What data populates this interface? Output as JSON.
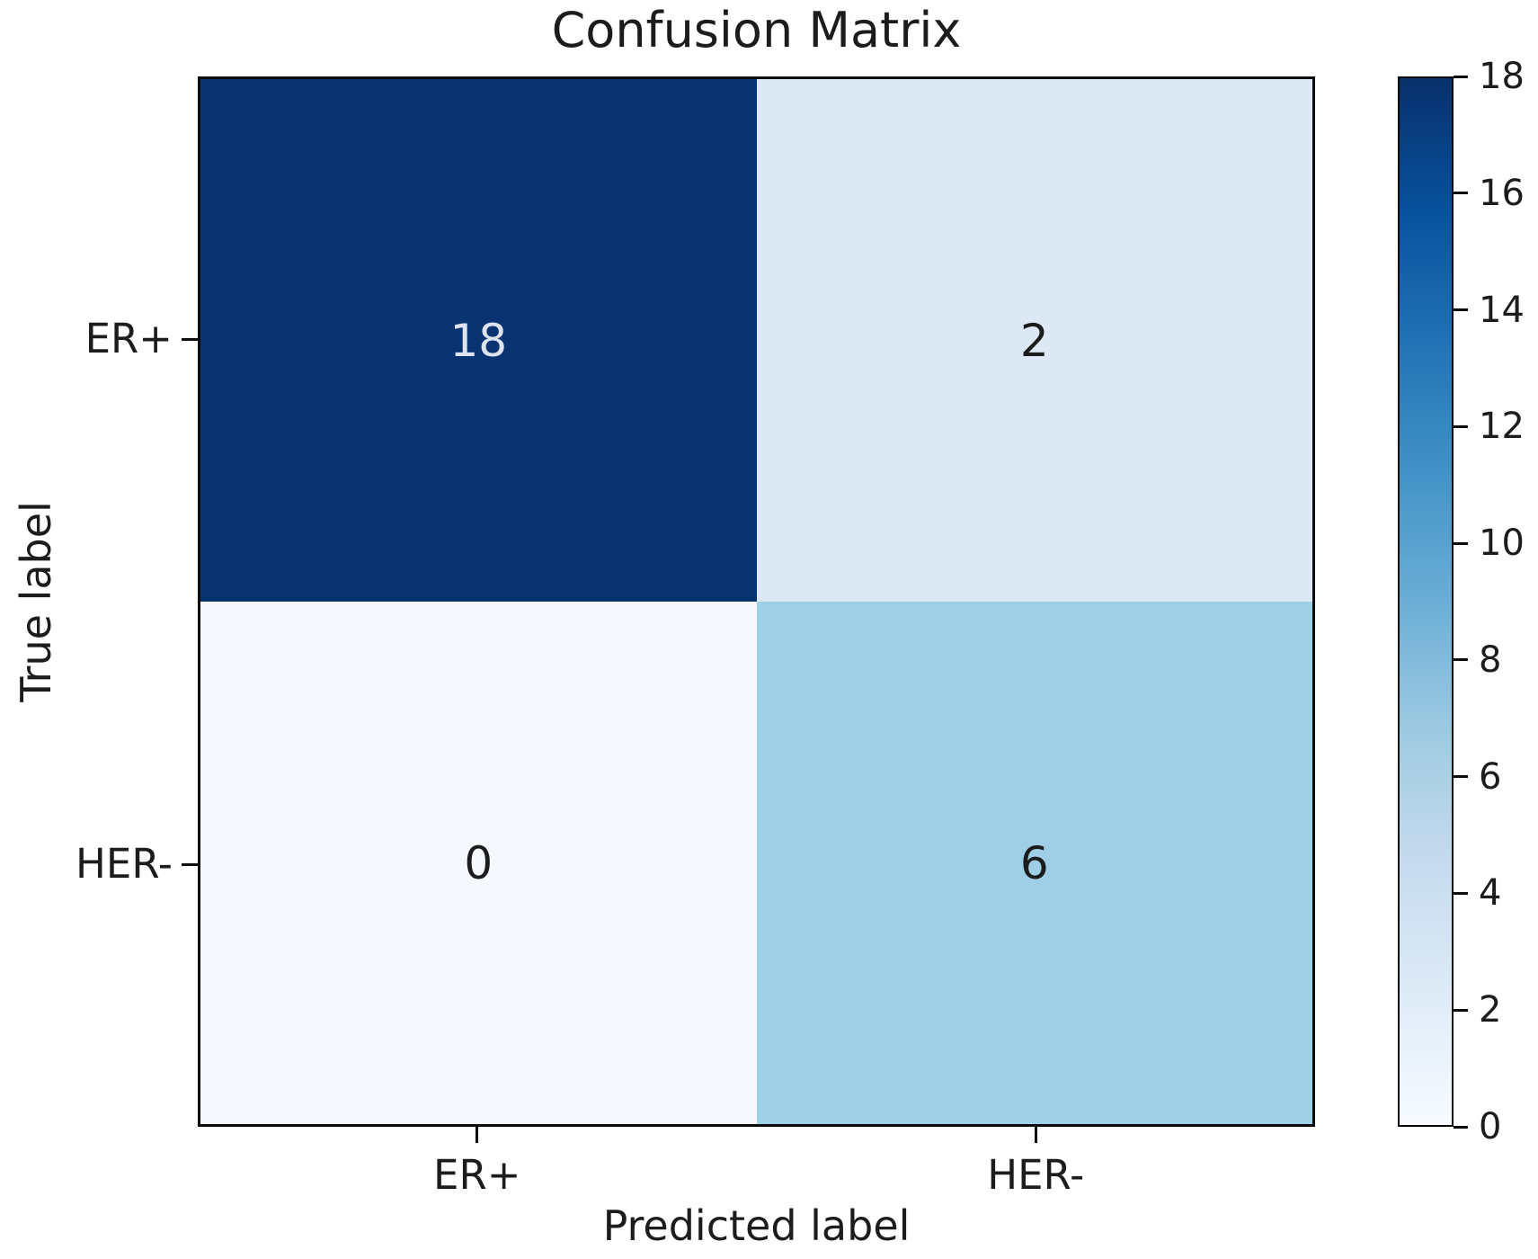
{
  "chart_data": {
    "type": "heatmap",
    "title": "Confusion Matrix",
    "xlabel": "Predicted label",
    "ylabel": "True label",
    "x_categories": [
      "ER+",
      "HER-"
    ],
    "y_categories": [
      "ER+",
      "HER-"
    ],
    "matrix": [
      [
        18,
        2
      ],
      [
        0,
        6
      ]
    ],
    "colormap": "Blues",
    "grid": false,
    "legend": "none",
    "cell_colors": [
      [
        "#083270",
        "#dce9f5"
      ],
      [
        "#f5f9fd",
        "#9ecfe7"
      ]
    ],
    "cell_text_colors": [
      [
        "#dde4f0",
        "#1c1c1c"
      ],
      [
        "#1c1c1c",
        "#1c1c1c"
      ]
    ],
    "axis_color": "#0a0a0a",
    "colorbar": {
      "min": 0,
      "max": 18,
      "ticks": [
        0,
        2,
        4,
        6,
        8,
        10,
        12,
        14,
        16,
        18
      ],
      "gradient": [
        {
          "pos": 0.0,
          "color": "#f7fbff"
        },
        {
          "pos": 0.125,
          "color": "#deebf7"
        },
        {
          "pos": 0.25,
          "color": "#c6dbef"
        },
        {
          "pos": 0.375,
          "color": "#9ecae1"
        },
        {
          "pos": 0.5,
          "color": "#6baed6"
        },
        {
          "pos": 0.625,
          "color": "#4292c6"
        },
        {
          "pos": 0.75,
          "color": "#2171b5"
        },
        {
          "pos": 0.875,
          "color": "#08519c"
        },
        {
          "pos": 1.0,
          "color": "#08306b"
        }
      ]
    }
  }
}
